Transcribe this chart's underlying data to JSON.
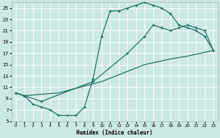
{
  "xlabel": "Humidex (Indice chaleur)",
  "xlim": [
    -0.5,
    23.5
  ],
  "ylim": [
    5,
    26
  ],
  "xticks": [
    0,
    1,
    2,
    3,
    4,
    5,
    6,
    7,
    8,
    9,
    10,
    11,
    12,
    13,
    14,
    15,
    16,
    17,
    18,
    19,
    20,
    21,
    22,
    23
  ],
  "yticks": [
    5,
    7,
    9,
    11,
    13,
    15,
    17,
    19,
    21,
    23,
    25
  ],
  "bg_color": "#cce8e4",
  "grid_color": "#ffffff",
  "line_color": "#1a6b60",
  "line1_x": [
    0,
    1,
    2,
    3,
    4,
    5,
    6,
    7,
    8,
    9,
    10,
    11,
    12,
    13,
    14,
    15,
    16,
    17,
    18,
    19,
    20,
    21,
    22,
    23
  ],
  "line1_y": [
    10,
    9.5,
    8,
    7.5,
    7,
    6,
    6,
    6,
    7.5,
    12.5,
    20,
    24.5,
    24.5,
    25,
    25.5,
    26,
    25.5,
    25,
    24,
    22,
    21.5,
    21,
    20,
    17.5
  ],
  "line2_x": [
    0,
    1,
    3,
    9,
    13,
    15,
    16,
    17,
    18,
    19,
    20,
    21,
    22,
    23
  ],
  "line2_y": [
    10,
    9.5,
    8.5,
    12,
    17,
    20,
    22,
    21.5,
    21,
    21.5,
    22,
    21.5,
    21,
    17.5
  ],
  "line3_x": [
    0,
    1,
    5,
    10,
    15,
    18,
    20,
    23
  ],
  "line3_y": [
    10,
    9.5,
    10,
    12,
    15,
    16,
    16.5,
    17.5
  ]
}
